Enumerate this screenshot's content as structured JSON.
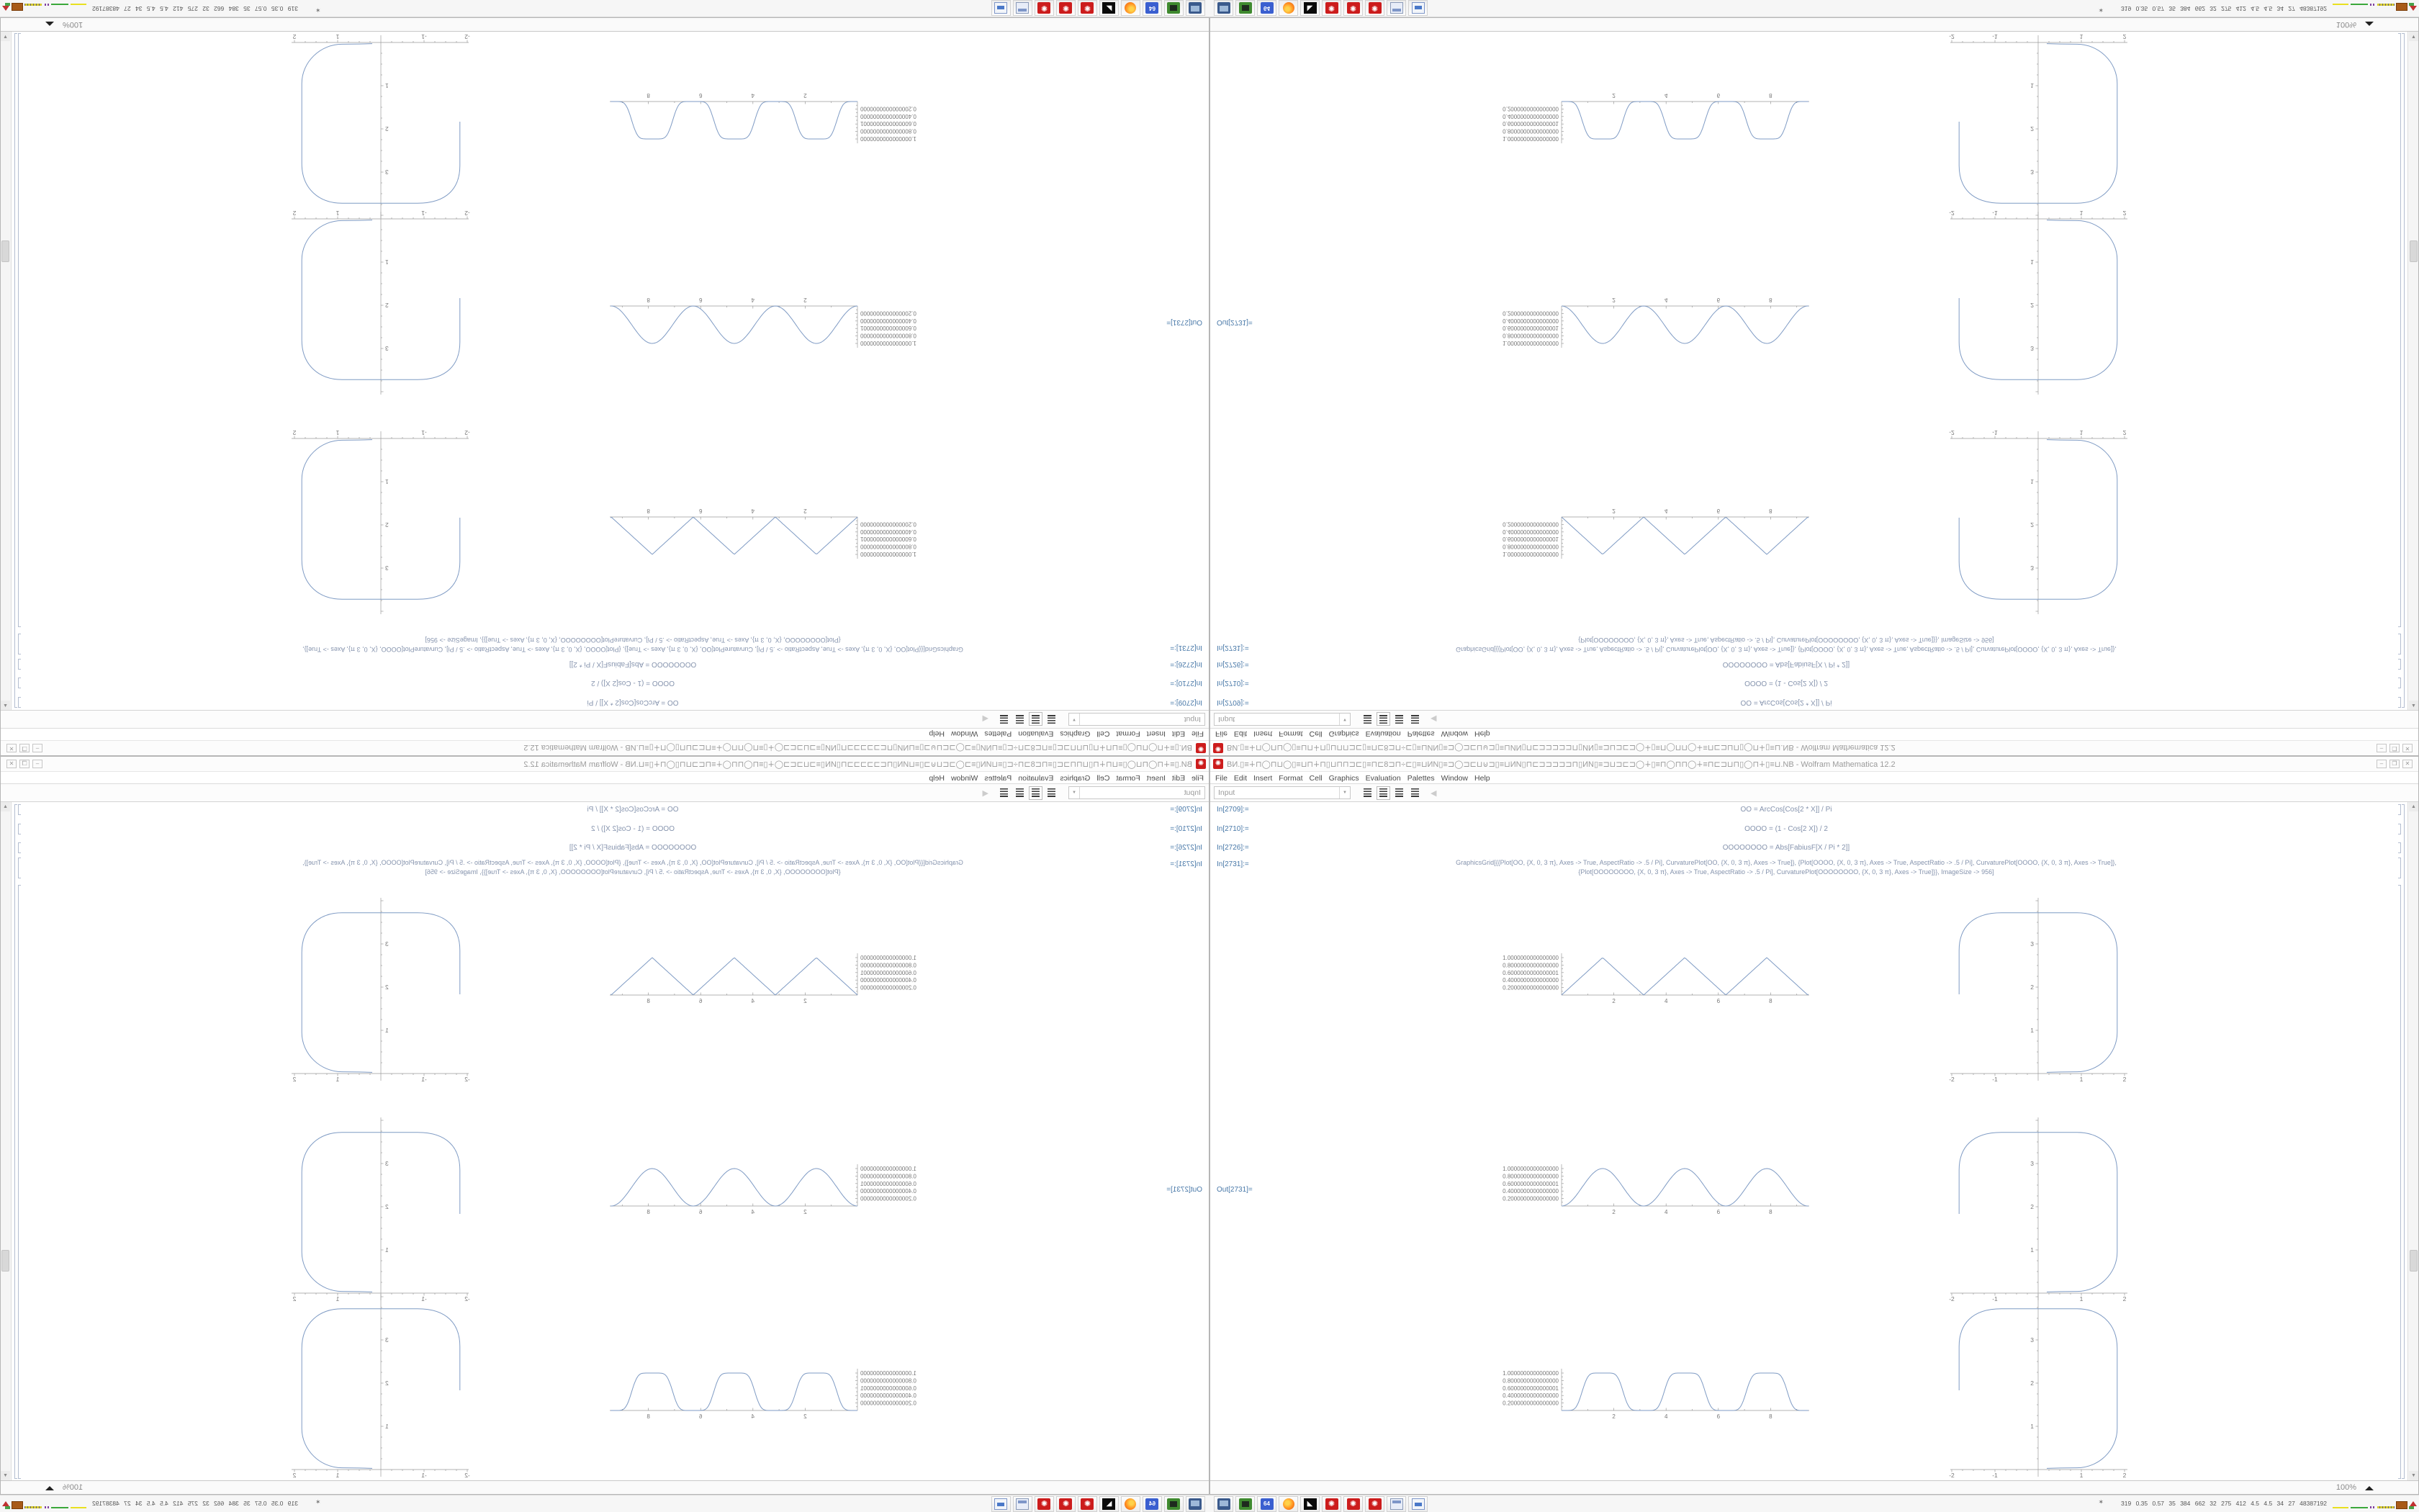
{
  "window": {
    "icon": "mathematica-spikey",
    "title": "ВИ.▯≡∔⊓◯⊓⊔◯▯≡⊔⊓∔⊓▯⊔⊓⊓⊐⊏▯≡⊓⊏8⊐⊓÷⊏▯≡⊔ИΝ▯≡⊐◯⊐⊏⊔⊍⊐▯≡⊔ИΝ▯⊓⊏⊐⊐⊐⊐⊐⊓▯ИΝ▯≡⊐⊔⊐⊏⊐◯∔▯≡⊓◯⊓⊓◯∔≡⊓⊏⊐⊔⊓▯◯⊓∔▯≡⊔.NB - Wolfram Mathematica 12.2",
    "controls": {
      "minimize": "–",
      "restore": "❐",
      "close": "✕"
    },
    "menu": [
      "File",
      "Edit",
      "Insert",
      "Format",
      "Cell",
      "Graphics",
      "Evaluation",
      "Palettes",
      "Window",
      "Help"
    ],
    "toolbar": {
      "style_value": "Input",
      "align_buttons": [
        "align-left",
        "align-center",
        "align-right",
        "align-justify"
      ],
      "collapse_arrow": "◀"
    },
    "status": {
      "magnification": "100%"
    }
  },
  "cells": {
    "c1": {
      "label": "In[2709]:=",
      "code": "OO = ArcCos[Cos[2 * X]] / Pi"
    },
    "c2": {
      "label": "In[2710]:=",
      "code": "OOOO = (1 - Cos[2 X]) / 2"
    },
    "c3": {
      "label": "In[2726]:=",
      "code": "OOOOOOOO = Abs[FabiusF[X / Pi * 2]]"
    },
    "c4": {
      "label": "In[2731]:=",
      "line1": "GraphicsGrid[{{Plot[OO, {X, 0, 3 π}, Axes -> True, AspectRatio -> .5 / Pi], CurvaturePlot[OO, {X, 0, 3 π}, Axes -> True]}, {Plot[OOOO, {X, 0, 3 π}, Axes -> True, AspectRatio -> .5 / Pi], CurvaturePlot[OOOO, {X, 0, 3 π}, Axes -> True]},",
      "line2": "{Plot[OOOOOOOO, {X, 0, 3 π}, Axes -> True, AspectRatio -> .5 / Pi], CurvaturePlot[OOOOOOOO, {X, 0, 3 π}, Axes -> True]}}, ImageSize -> 956]"
    },
    "out": {
      "label": "Out[2731]="
    }
  },
  "plots": {
    "wave_y_tick_labels": [
      "1.0000000000000000",
      "0.8000000000000000",
      "0.6000000000000001",
      "0.4000000000000000",
      "0.2000000000000000"
    ],
    "wave_y_tick_values": [
      1.0,
      0.8,
      0.6,
      0.4,
      0.2
    ],
    "wave_x_tick_labels": [
      "2",
      "4",
      "6",
      "8"
    ],
    "square_y_tick_labels": [
      "1",
      "2",
      "3"
    ],
    "square_x_tick_labels": [
      "-2",
      "-1",
      "1",
      "2"
    ],
    "rows": [
      {
        "wave_type": "triangle"
      },
      {
        "wave_type": "sin_squared"
      },
      {
        "wave_type": "fabius_flat_top"
      }
    ],
    "curve_color": "#7f9bc4",
    "axis_color": "#9a9a9a",
    "tick_label_color": "#787878"
  },
  "chart_data": [
    {
      "type": "line",
      "title": "Plot of OO (triangle wave)",
      "x_range": [
        0,
        9.42
      ],
      "y_range": [
        0,
        1
      ],
      "x_ticks": [
        2,
        4,
        6,
        8
      ],
      "y_ticks": [
        0.2,
        0.4,
        0.6,
        0.8,
        1.0
      ],
      "peaks_at_x": [
        1.57,
        4.71,
        7.85
      ],
      "zeros_at_x": [
        0,
        3.14,
        6.28,
        9.42
      ]
    },
    {
      "type": "line",
      "title": "CurvaturePlot of OO (rounded square curve)",
      "x_ticks": [
        -2,
        -1,
        1,
        2
      ],
      "y_ticks": [
        1,
        2,
        3
      ],
      "shape": "open rounded-square, top near y=3.7, sides near x=±1.85"
    },
    {
      "type": "line",
      "title": "Plot of OOOO = sin^2 (smooth bumps)",
      "x_range": [
        0,
        9.42
      ],
      "y_range": [
        0,
        1
      ],
      "x_ticks": [
        2,
        4,
        6,
        8
      ],
      "y_ticks": [
        0.2,
        0.4,
        0.6,
        0.8,
        1.0
      ],
      "peaks_at_x": [
        1.57,
        4.71,
        7.85
      ]
    },
    {
      "type": "line",
      "title": "CurvaturePlot of OOOO (rounded square curve)",
      "x_ticks": [
        -2,
        -1,
        1,
        2
      ],
      "y_ticks": [
        1,
        2,
        3
      ]
    },
    {
      "type": "line",
      "title": "Plot of OOOOOOOO (Fabius flat-top bumps)",
      "x_range": [
        0,
        9.42
      ],
      "y_range": [
        0,
        1
      ],
      "x_ticks": [
        2,
        4,
        6,
        8
      ],
      "y_ticks": [
        0.2,
        0.4,
        0.6,
        0.8,
        1.0
      ],
      "peaks_at_x": [
        1.57,
        4.71,
        7.85
      ]
    },
    {
      "type": "line",
      "title": "CurvaturePlot of OOOOOOOO (rounded square curve)",
      "x_ticks": [
        -2,
        -1,
        1,
        2
      ],
      "y_ticks": [
        1,
        2,
        3
      ]
    }
  ],
  "taskbar": {
    "icons": [
      {
        "name": "display-settings-icon"
      },
      {
        "name": "drive-manager-icon"
      },
      {
        "name": "floppy-64-icon",
        "label": "64"
      },
      {
        "name": "firefox-icon"
      },
      {
        "name": "dark-graphics-app-icon",
        "glyph": "◣"
      },
      {
        "name": "mathematica-icon-1",
        "glyph": "✺"
      },
      {
        "name": "mathematica-icon-2",
        "glyph": "✺"
      },
      {
        "name": "mathematica-icon-3",
        "glyph": "✺"
      },
      {
        "name": "calculator-icon"
      },
      {
        "name": "document-viewer-icon"
      }
    ],
    "tray_figure_glyph": "✶",
    "stats": "319 0.35 0.57 35 384 662 32 275 412 4.5 4.5 34 27 48387192"
  }
}
